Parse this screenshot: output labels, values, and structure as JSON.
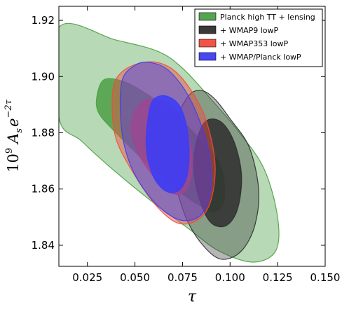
{
  "chart_data": {
    "type": "contour",
    "xlabel": "τ",
    "ylabel": "10⁹ A_s e^{-2τ}",
    "ylabel_parts": {
      "mantissa": "10",
      "exponent": "9",
      "symbol": "A",
      "subscript": "s",
      "e": "e",
      "e_exponent": "−2τ"
    },
    "xlim": [
      0.01,
      0.15
    ],
    "ylim": [
      1.8325,
      1.925
    ],
    "x_ticks": [
      0.025,
      0.05,
      0.075,
      0.1,
      0.125,
      0.15
    ],
    "x_tick_labels": [
      "0.025",
      "0.050",
      "0.075",
      "0.100",
      "0.125",
      "0.150"
    ],
    "y_ticks": [
      1.84,
      1.86,
      1.88,
      1.9,
      1.92
    ],
    "y_tick_labels": [
      "1.84",
      "1.86",
      "1.88",
      "1.90",
      "1.92"
    ],
    "grid": false,
    "legend_position": "top-right",
    "series": [
      {
        "name": "Planck high TT + lensing",
        "color": "#4c9f45",
        "regions": [
          {
            "level": "95%",
            "opacity": 0.4,
            "points": [
              [
                0.01,
                1.9175
              ],
              [
                0.04,
                1.913
              ],
              [
                0.062,
                1.909
              ],
              [
                0.075,
                1.903
              ],
              [
                0.09,
                1.892
              ],
              [
                0.105,
                1.88
              ],
              [
                0.118,
                1.867
              ],
              [
                0.125,
                1.85
              ],
              [
                0.124,
                1.838
              ],
              [
                0.112,
                1.834
              ],
              [
                0.094,
                1.838
              ],
              [
                0.078,
                1.846
              ],
              [
                0.06,
                1.855
              ],
              [
                0.04,
                1.866
              ],
              [
                0.022,
                1.877
              ],
              [
                0.01,
                1.8855
              ]
            ]
          },
          {
            "level": "68%",
            "opacity": 0.85,
            "points": [
              [
                0.03,
                1.893
              ],
              [
                0.034,
                1.899
              ],
              [
                0.045,
                1.898
              ],
              [
                0.058,
                1.893
              ],
              [
                0.072,
                1.886
              ],
              [
                0.085,
                1.877
              ],
              [
                0.095,
                1.868
              ],
              [
                0.097,
                1.857
              ],
              [
                0.092,
                1.852
              ],
              [
                0.082,
                1.855
              ],
              [
                0.07,
                1.861
              ],
              [
                0.055,
                1.87
              ],
              [
                0.04,
                1.88
              ],
              [
                0.031,
                1.887
              ]
            ]
          }
        ]
      },
      {
        "name": "+ WMAP9 lowP",
        "color": "#2e2e2e",
        "regions": [
          {
            "level": "95%",
            "opacity": 0.35,
            "points": [
              [
                0.07,
                1.882
              ],
              [
                0.078,
                1.893
              ],
              [
                0.085,
                1.895
              ],
              [
                0.092,
                1.892
              ],
              [
                0.1,
                1.885
              ],
              [
                0.11,
                1.875
              ],
              [
                0.115,
                1.86
              ],
              [
                0.113,
                1.847
              ],
              [
                0.106,
                1.838
              ],
              [
                0.096,
                1.835
              ],
              [
                0.087,
                1.839
              ],
              [
                0.078,
                1.848
              ],
              [
                0.072,
                1.86
              ],
              [
                0.069,
                1.872
              ]
            ]
          },
          {
            "level": "68%",
            "opacity": 0.85,
            "points": [
              [
                0.082,
                1.876
              ],
              [
                0.087,
                1.884
              ],
              [
                0.095,
                1.884
              ],
              [
                0.102,
                1.877
              ],
              [
                0.106,
                1.865
              ],
              [
                0.104,
                1.853
              ],
              [
                0.098,
                1.847
              ],
              [
                0.09,
                1.848
              ],
              [
                0.084,
                1.856
              ],
              [
                0.081,
                1.866
              ]
            ]
          }
        ]
      },
      {
        "name": "+ WMAP353 lowP",
        "color": "#f24a3d",
        "regions": [
          {
            "level": "95%",
            "opacity": 0.45,
            "points": [
              [
                0.038,
                1.89
              ],
              [
                0.04,
                1.899
              ],
              [
                0.049,
                1.904
              ],
              [
                0.062,
                1.905
              ],
              [
                0.074,
                1.9
              ],
              [
                0.086,
                1.887
              ],
              [
                0.092,
                1.87
              ],
              [
                0.09,
                1.856
              ],
              [
                0.083,
                1.849
              ],
              [
                0.072,
                1.848
              ],
              [
                0.06,
                1.855
              ],
              [
                0.048,
                1.867
              ],
              [
                0.04,
                1.878
              ]
            ]
          },
          {
            "level": "68%",
            "opacity": 0.75,
            "points": [
              [
                0.048,
                1.883
              ],
              [
                0.052,
                1.89
              ],
              [
                0.06,
                1.892
              ],
              [
                0.07,
                1.889
              ],
              [
                0.078,
                1.879
              ],
              [
                0.08,
                1.867
              ],
              [
                0.076,
                1.859
              ],
              [
                0.068,
                1.859
              ],
              [
                0.058,
                1.866
              ],
              [
                0.05,
                1.875
              ]
            ]
          }
        ]
      },
      {
        "name": "+ WMAP/Planck lowP",
        "color": "#3d3df5",
        "regions": [
          {
            "level": "95%",
            "opacity": 0.45,
            "points": [
              [
                0.043,
                1.898
              ],
              [
                0.05,
                1.904
              ],
              [
                0.058,
                1.905
              ],
              [
                0.068,
                1.902
              ],
              [
                0.079,
                1.892
              ],
              [
                0.088,
                1.876
              ],
              [
                0.09,
                1.862
              ],
              [
                0.087,
                1.853
              ],
              [
                0.08,
                1.849
              ],
              [
                0.07,
                1.85
              ],
              [
                0.058,
                1.857
              ],
              [
                0.048,
                1.868
              ],
              [
                0.043,
                1.881
              ]
            ]
          },
          {
            "level": "68%",
            "opacity": 0.9,
            "points": [
              [
                0.057,
                1.886
              ],
              [
                0.06,
                1.892
              ],
              [
                0.067,
                1.893
              ],
              [
                0.074,
                1.889
              ],
              [
                0.078,
                1.879
              ],
              [
                0.078,
                1.867
              ],
              [
                0.074,
                1.86
              ],
              [
                0.067,
                1.859
              ],
              [
                0.06,
                1.864
              ],
              [
                0.056,
                1.874
              ]
            ]
          }
        ]
      }
    ]
  }
}
